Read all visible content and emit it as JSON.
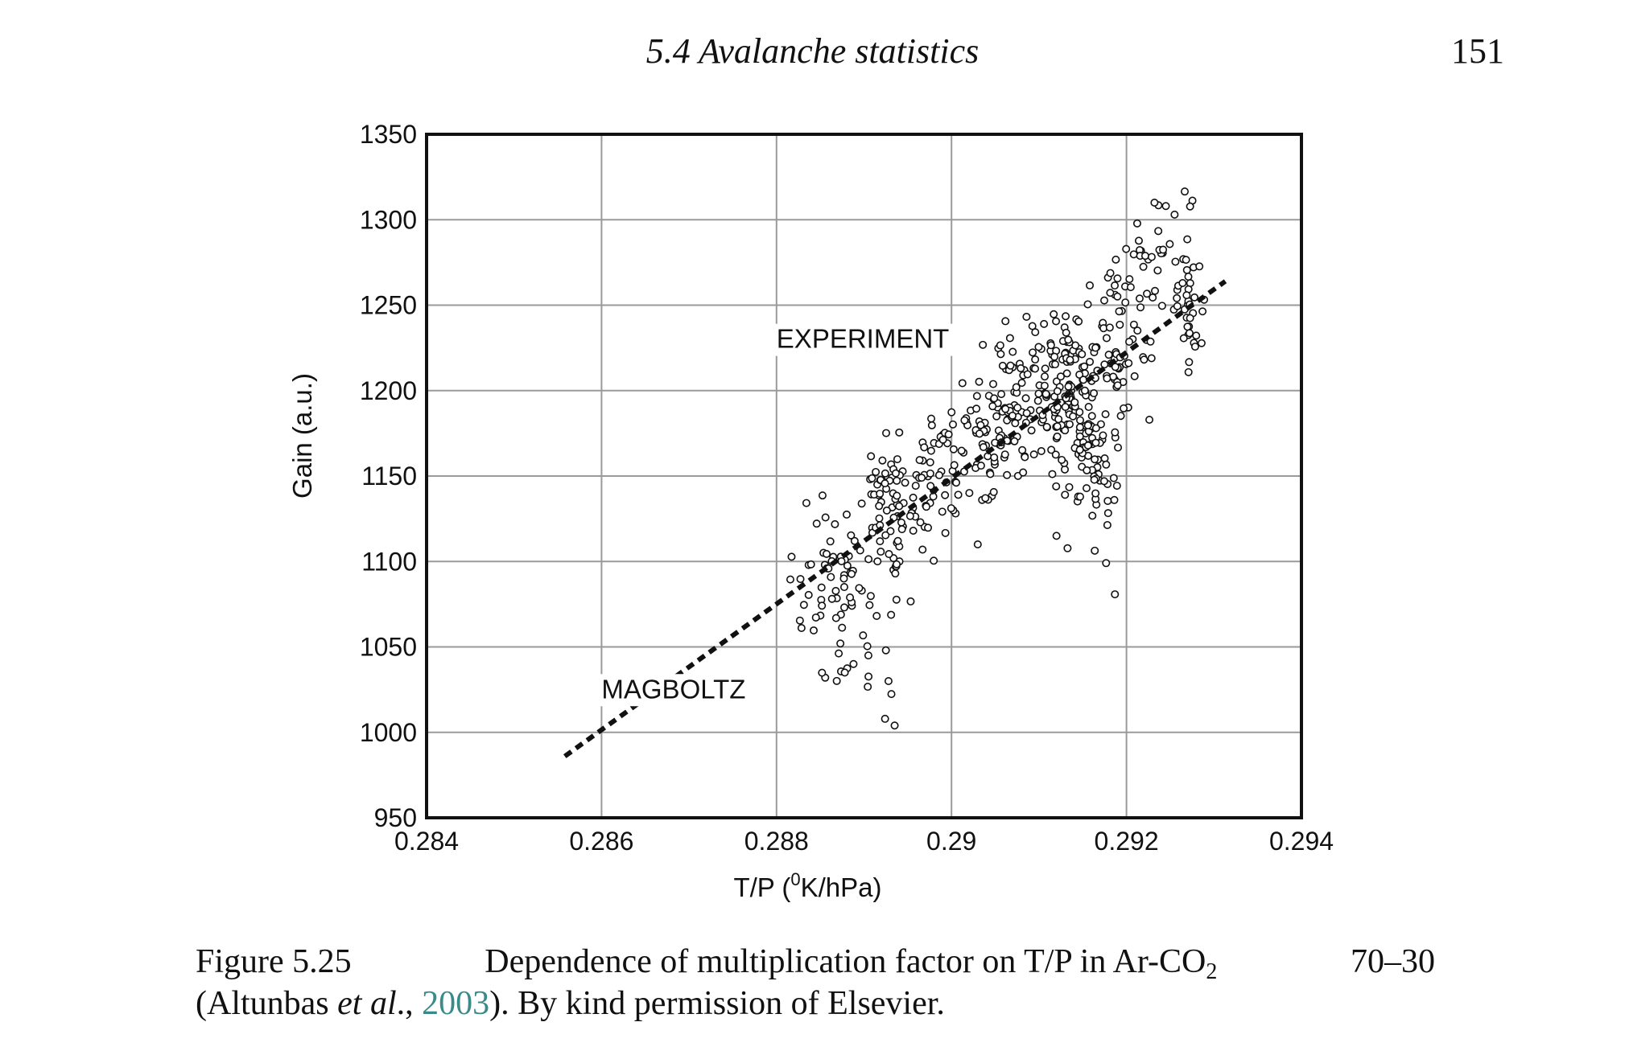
{
  "header": {
    "running_title": "5.4 Avalanche statistics",
    "page_number": "151"
  },
  "chart_data": {
    "type": "scatter",
    "title": "",
    "xlabel_prefix": "T/P (",
    "xlabel_sup": "0",
    "xlabel_suffix": "K/hPa)",
    "ylabel": "Gain (a.u.)",
    "xlim": [
      0.284,
      0.294
    ],
    "ylim": [
      950,
      1350
    ],
    "x_ticks": [
      0.284,
      0.286,
      0.288,
      0.29,
      0.292,
      0.294
    ],
    "x_tick_labels": [
      "0.284",
      "0.286",
      "0.288",
      "0.29",
      "0.292",
      "0.294"
    ],
    "y_ticks": [
      950,
      1000,
      1050,
      1100,
      1150,
      1200,
      1250,
      1300,
      1350
    ],
    "y_tick_labels": [
      "950",
      "1000",
      "1050",
      "1100",
      "1150",
      "1200",
      "1250",
      "1300",
      "1350"
    ],
    "grid": true,
    "series": [
      {
        "name": "EXPERIMENT",
        "kind": "scatter",
        "clusters": [
          {
            "x": 0.2886,
            "y": 1095,
            "sx": 0.00022,
            "sy": 18,
            "n": 45
          },
          {
            "x": 0.2888,
            "y": 1060,
            "sx": 0.00025,
            "sy": 22,
            "n": 25
          },
          {
            "x": 0.2893,
            "y": 1120,
            "sx": 0.00018,
            "sy": 20,
            "n": 55
          },
          {
            "x": 0.2893,
            "y": 1150,
            "sx": 0.0001,
            "sy": 12,
            "n": 20
          },
          {
            "x": 0.2898,
            "y": 1145,
            "sx": 0.00022,
            "sy": 15,
            "n": 50
          },
          {
            "x": 0.2903,
            "y": 1170,
            "sx": 0.00025,
            "sy": 18,
            "n": 60
          },
          {
            "x": 0.2908,
            "y": 1195,
            "sx": 0.00025,
            "sy": 20,
            "n": 80
          },
          {
            "x": 0.2913,
            "y": 1205,
            "sx": 0.0002,
            "sy": 22,
            "n": 110
          },
          {
            "x": 0.2916,
            "y": 1160,
            "sx": 0.00018,
            "sy": 25,
            "n": 60
          },
          {
            "x": 0.2919,
            "y": 1225,
            "sx": 0.0002,
            "sy": 22,
            "n": 70
          },
          {
            "x": 0.2923,
            "y": 1270,
            "sx": 0.00015,
            "sy": 20,
            "n": 30
          },
          {
            "x": 0.2927,
            "y": 1245,
            "sx": 9e-05,
            "sy": 25,
            "n": 40
          }
        ],
        "outliers": [
          [
            0.28935,
            1004
          ],
          [
            0.28928,
            1030
          ],
          [
            0.28878,
            1035
          ],
          [
            0.28888,
            1040
          ],
          [
            0.28905,
            1045
          ],
          [
            0.28925,
            1048
          ],
          [
            0.28873,
            1052
          ],
          [
            0.2903,
            1110
          ],
          [
            0.2912,
            1115
          ],
          [
            0.29245,
            1308
          ],
          [
            0.29232,
            1310
          ],
          [
            0.29255,
            1303
          ]
        ]
      },
      {
        "name": "MAGBOLTZ",
        "kind": "dashed-line",
        "x": [
          0.28558,
          0.29313
        ],
        "y": [
          986,
          1264
        ]
      }
    ],
    "annotations": [
      {
        "text": "EXPERIMENT",
        "x": 0.288,
        "y": 1225
      },
      {
        "text": "MAGBOLTZ",
        "x": 0.286,
        "y": 1020
      }
    ]
  },
  "caption": {
    "label": "Figure 5.25",
    "text_line1": "Dependence of multiplication factor on T/P in Ar-CO",
    "sub": "2",
    "text_line1_end": "70–30",
    "line2_prefix": "(Altunbas ",
    "line2_etal": "et al",
    "line2_mid": "., ",
    "citation_year": "2003",
    "line2_suffix": "). By kind permission of Elsevier."
  }
}
